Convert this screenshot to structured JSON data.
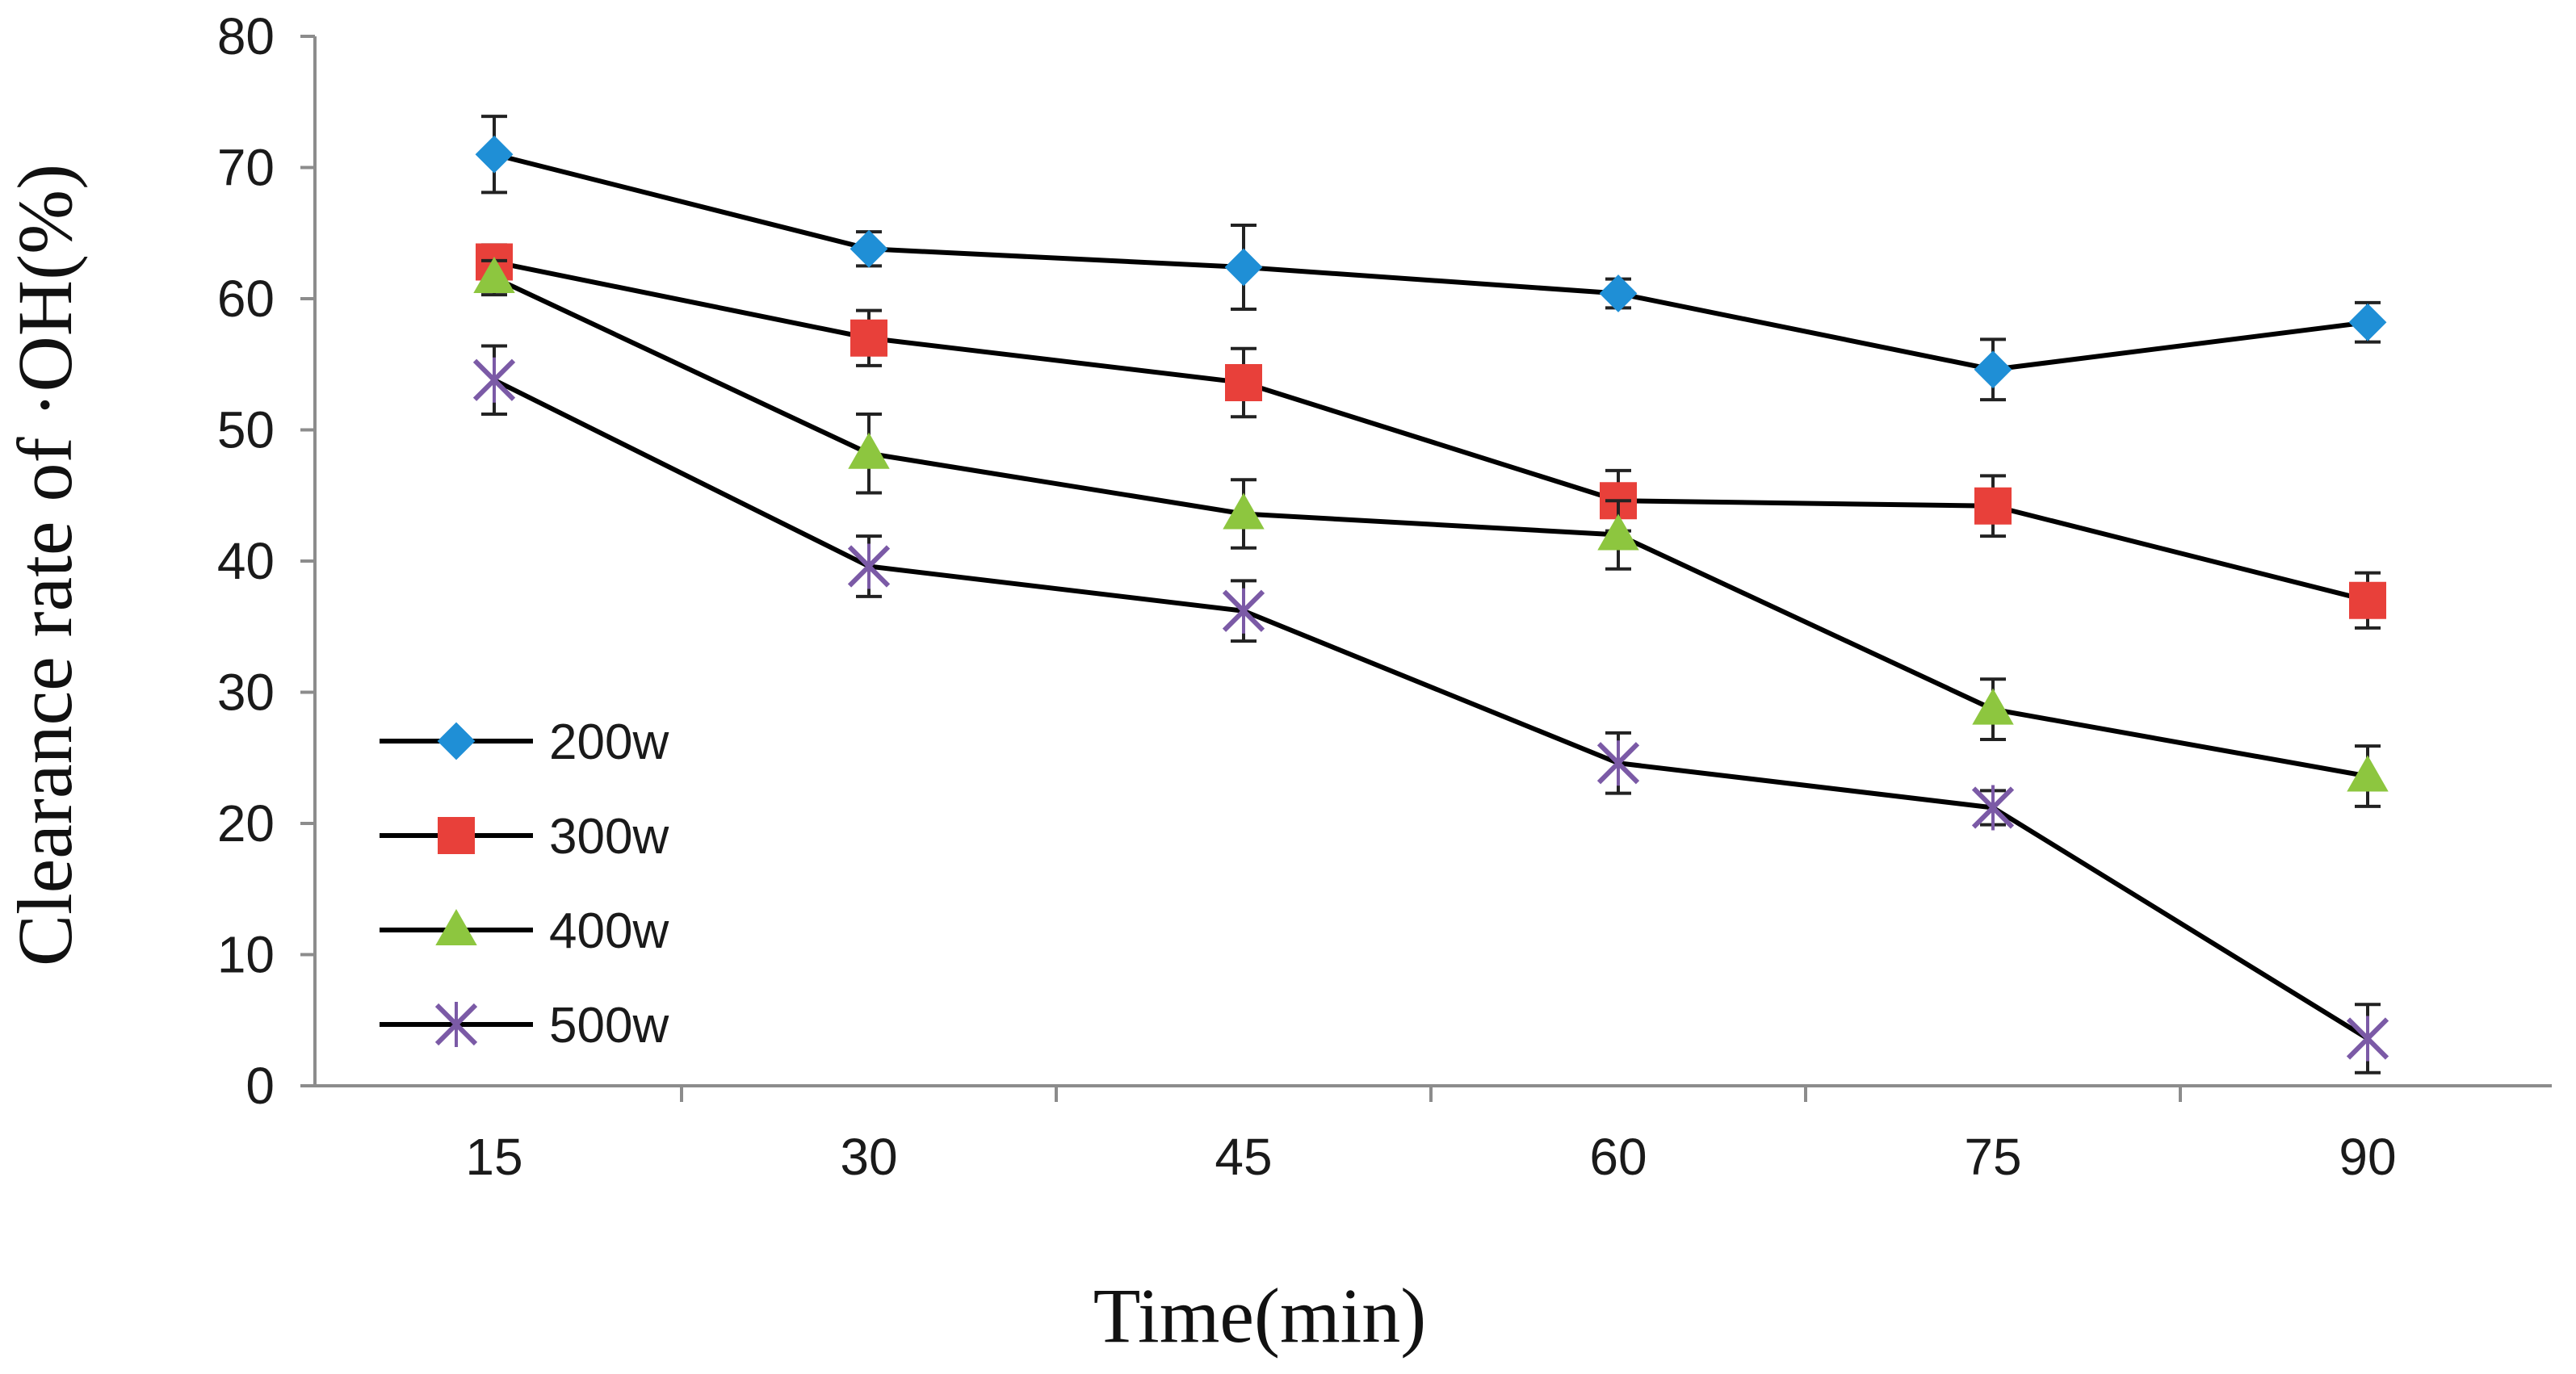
{
  "chart_data": {
    "type": "line",
    "title": "",
    "xlabel": "Time(min)",
    "ylabel": "Clearance rate of ·OH(%)",
    "x": [
      15,
      30,
      45,
      60,
      75,
      90
    ],
    "x_tick_labels": [
      "15",
      "30",
      "45",
      "60",
      "75",
      "90"
    ],
    "ylim": [
      0,
      80
    ],
    "y_ticks": [
      0,
      10,
      20,
      30,
      40,
      50,
      60,
      70,
      80
    ],
    "y_tick_labels": [
      "0",
      "10",
      "20",
      "30",
      "40",
      "50",
      "60",
      "70",
      "80"
    ],
    "grid": false,
    "legend_position": "bottom-left",
    "series": [
      {
        "name": "200w",
        "marker": "diamond",
        "marker_color": "#1F8FD6",
        "line_color": "#000000",
        "values": [
          71.0,
          63.8,
          62.4,
          60.4,
          54.6,
          58.2
        ],
        "errors": [
          2.9,
          1.3,
          3.2,
          1.1,
          2.3,
          1.5
        ]
      },
      {
        "name": "300w",
        "marker": "square",
        "marker_color": "#E8403A",
        "line_color": "#000000",
        "values": [
          62.8,
          57.0,
          53.6,
          44.6,
          44.2,
          37.0
        ],
        "errors": [
          1.3,
          2.1,
          2.6,
          2.3,
          2.3,
          2.1
        ]
      },
      {
        "name": "400w",
        "marker": "triangle",
        "marker_color": "#8DC63F",
        "line_color": "#000000",
        "values": [
          61.6,
          48.2,
          43.6,
          42.0,
          28.7,
          23.6
        ],
        "errors": [
          1.3,
          3.0,
          2.6,
          2.6,
          2.3,
          2.3
        ]
      },
      {
        "name": "500w",
        "marker": "x",
        "marker_color": "#7B5AA6",
        "line_color": "#000000",
        "values": [
          53.8,
          39.6,
          36.2,
          24.6,
          21.2,
          3.6
        ],
        "errors": [
          2.6,
          2.3,
          2.3,
          2.3,
          1.3,
          2.6
        ]
      }
    ]
  }
}
